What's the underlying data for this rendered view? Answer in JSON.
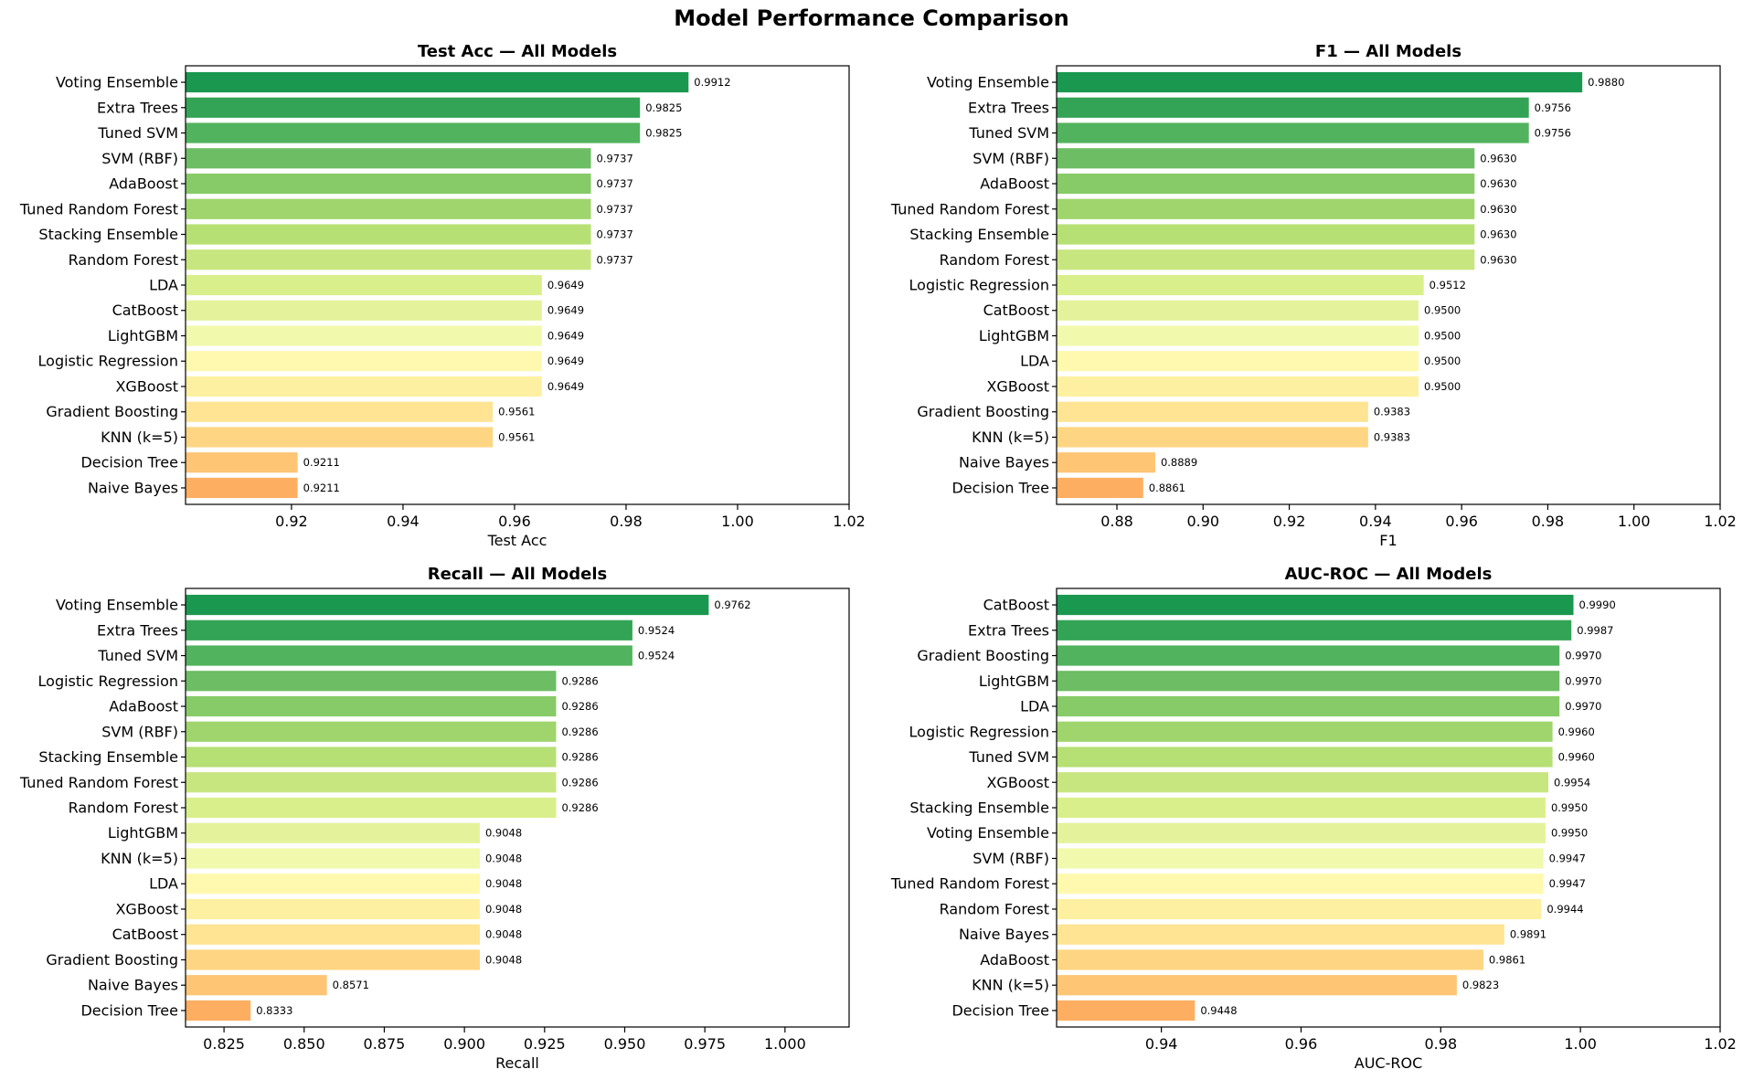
{
  "title": "Model Performance Comparison",
  "chart_data": [
    {
      "type": "bar",
      "orientation": "horizontal",
      "title": "Test Acc — All Models",
      "xlabel": "Test Acc",
      "ylabel": "",
      "xlim": [
        0.901,
        1.02
      ],
      "xticks": [
        "0.92",
        "0.94",
        "0.96",
        "0.98",
        "1.00",
        "1.02"
      ],
      "xtick_values": [
        0.92,
        0.94,
        0.96,
        0.98,
        1.0,
        1.02
      ],
      "categories": [
        "Voting Ensemble",
        "Extra Trees",
        "Tuned SVM",
        "SVM (RBF)",
        "AdaBoost",
        "Tuned Random Forest",
        "Stacking Ensemble",
        "Random Forest",
        "LDA",
        "CatBoost",
        "LightGBM",
        "Logistic Regression",
        "XGBoost",
        "Gradient Boosting",
        "KNN (k=5)",
        "Decision Tree",
        "Naive Bayes"
      ],
      "values": [
        0.9912,
        0.9825,
        0.9825,
        0.9737,
        0.9737,
        0.9737,
        0.9737,
        0.9737,
        0.9649,
        0.9649,
        0.9649,
        0.9649,
        0.9649,
        0.9561,
        0.9561,
        0.9211,
        0.9211
      ],
      "value_labels": [
        "0.9912",
        "0.9825",
        "0.9825",
        "0.9737",
        "0.9737",
        "0.9737",
        "0.9737",
        "0.9737",
        "0.9649",
        "0.9649",
        "0.9649",
        "0.9649",
        "0.9649",
        "0.9561",
        "0.9561",
        "0.9211",
        "0.9211"
      ],
      "grid": false,
      "color_scale": "green-to-orange"
    },
    {
      "type": "bar",
      "orientation": "horizontal",
      "title": "F1 — All Models",
      "xlabel": "F1",
      "ylabel": "",
      "xlim": [
        0.866,
        1.02
      ],
      "xticks": [
        "0.88",
        "0.90",
        "0.92",
        "0.94",
        "0.96",
        "0.98",
        "1.00",
        "1.02"
      ],
      "xtick_values": [
        0.88,
        0.9,
        0.92,
        0.94,
        0.96,
        0.98,
        1.0,
        1.02
      ],
      "categories": [
        "Voting Ensemble",
        "Extra Trees",
        "Tuned SVM",
        "SVM (RBF)",
        "AdaBoost",
        "Tuned Random Forest",
        "Stacking Ensemble",
        "Random Forest",
        "Logistic Regression",
        "CatBoost",
        "LightGBM",
        "LDA",
        "XGBoost",
        "Gradient Boosting",
        "KNN (k=5)",
        "Naive Bayes",
        "Decision Tree"
      ],
      "values": [
        0.988,
        0.9756,
        0.9756,
        0.963,
        0.963,
        0.963,
        0.963,
        0.963,
        0.9512,
        0.95,
        0.95,
        0.95,
        0.95,
        0.9383,
        0.9383,
        0.8889,
        0.8861
      ],
      "value_labels": [
        "0.9880",
        "0.9756",
        "0.9756",
        "0.9630",
        "0.9630",
        "0.9630",
        "0.9630",
        "0.9630",
        "0.9512",
        "0.9500",
        "0.9500",
        "0.9500",
        "0.9500",
        "0.9383",
        "0.9383",
        "0.8889",
        "0.8861"
      ],
      "grid": false,
      "color_scale": "green-to-orange"
    },
    {
      "type": "bar",
      "orientation": "horizontal",
      "title": "Recall — All Models",
      "xlabel": "Recall",
      "ylabel": "",
      "xlim": [
        0.813,
        1.02
      ],
      "xticks": [
        "0.825",
        "0.850",
        "0.875",
        "0.900",
        "0.925",
        "0.950",
        "0.975",
        "1.000"
      ],
      "xtick_values": [
        0.825,
        0.85,
        0.875,
        0.9,
        0.925,
        0.95,
        0.975,
        1.0
      ],
      "categories": [
        "Voting Ensemble",
        "Extra Trees",
        "Tuned SVM",
        "Logistic Regression",
        "AdaBoost",
        "SVM (RBF)",
        "Stacking Ensemble",
        "Tuned Random Forest",
        "Random Forest",
        "LightGBM",
        "KNN (k=5)",
        "LDA",
        "XGBoost",
        "CatBoost",
        "Gradient Boosting",
        "Naive Bayes",
        "Decision Tree"
      ],
      "values": [
        0.9762,
        0.9524,
        0.9524,
        0.9286,
        0.9286,
        0.9286,
        0.9286,
        0.9286,
        0.9286,
        0.9048,
        0.9048,
        0.9048,
        0.9048,
        0.9048,
        0.9048,
        0.8571,
        0.8333
      ],
      "value_labels": [
        "0.9762",
        "0.9524",
        "0.9524",
        "0.9286",
        "0.9286",
        "0.9286",
        "0.9286",
        "0.9286",
        "0.9286",
        "0.9048",
        "0.9048",
        "0.9048",
        "0.9048",
        "0.9048",
        "0.9048",
        "0.8571",
        "0.8333"
      ],
      "grid": false,
      "color_scale": "green-to-orange"
    },
    {
      "type": "bar",
      "orientation": "horizontal",
      "title": "AUC-ROC — All Models",
      "xlabel": "AUC-ROC",
      "ylabel": "",
      "xlim": [
        0.925,
        1.02
      ],
      "xticks": [
        "0.94",
        "0.96",
        "0.98",
        "1.00",
        "1.02"
      ],
      "xtick_values": [
        0.94,
        0.96,
        0.98,
        1.0,
        1.02
      ],
      "categories": [
        "CatBoost",
        "Extra Trees",
        "Gradient Boosting",
        "LightGBM",
        "LDA",
        "Logistic Regression",
        "Tuned SVM",
        "XGBoost",
        "Stacking Ensemble",
        "Voting Ensemble",
        "SVM (RBF)",
        "Tuned Random Forest",
        "Random Forest",
        "Naive Bayes",
        "AdaBoost",
        "KNN (k=5)",
        "Decision Tree"
      ],
      "values": [
        0.999,
        0.9987,
        0.997,
        0.997,
        0.997,
        0.996,
        0.996,
        0.9954,
        0.995,
        0.995,
        0.9947,
        0.9947,
        0.9944,
        0.9891,
        0.9861,
        0.9823,
        0.9448
      ],
      "value_labels": [
        "0.9990",
        "0.9987",
        "0.9970",
        "0.9970",
        "0.9970",
        "0.9960",
        "0.9960",
        "0.9954",
        "0.9950",
        "0.9950",
        "0.9947",
        "0.9947",
        "0.9944",
        "0.9891",
        "0.9861",
        "0.9823",
        "0.9448"
      ],
      "grid": false,
      "color_scale": "green-to-orange"
    }
  ],
  "colors": {
    "bar_ramp": [
      "#1a9850",
      "#33a456",
      "#51b35d",
      "#6cbd63",
      "#86cb67",
      "#9fd56c",
      "#b6e074",
      "#c8e67f",
      "#d9ef8b",
      "#e4f39b",
      "#f1f9ac",
      "#fef9ae",
      "#fef0a1",
      "#fee493",
      "#fed582",
      "#fec574",
      "#fdae61"
    ],
    "axis": "#000000",
    "text": "#000000"
  }
}
